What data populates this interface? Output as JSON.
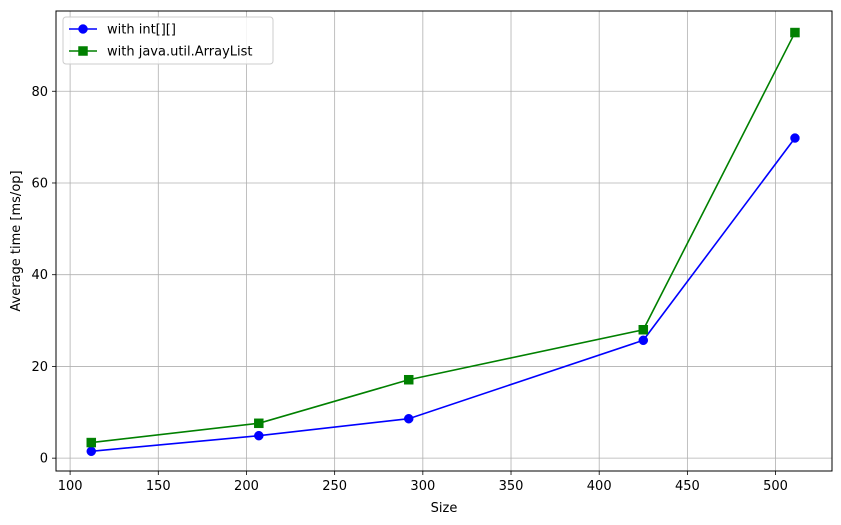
{
  "chart_data": {
    "type": "line",
    "title": "",
    "xlabel": "Size",
    "ylabel": "Average time [ms/op]",
    "xlim": [
      92,
      532
    ],
    "ylim": [
      -2.8,
      97.5
    ],
    "xticks": [
      100,
      150,
      200,
      250,
      300,
      350,
      400,
      450,
      500
    ],
    "yticks": [
      0,
      20,
      40,
      60,
      80
    ],
    "grid": true,
    "legend_position": "top-left",
    "series": [
      {
        "name": "with int[][]",
        "color": "#0000ff",
        "marker": "circle",
        "x": [
          112,
          207,
          292,
          425,
          511
        ],
        "y": [
          1.5,
          4.9,
          8.6,
          25.7,
          69.8
        ]
      },
      {
        "name": "with java.util.ArrayList",
        "color": "#008000",
        "marker": "square",
        "x": [
          112,
          207,
          292,
          425,
          511
        ],
        "y": [
          3.4,
          7.6,
          17.1,
          28.0,
          92.8
        ]
      }
    ]
  }
}
